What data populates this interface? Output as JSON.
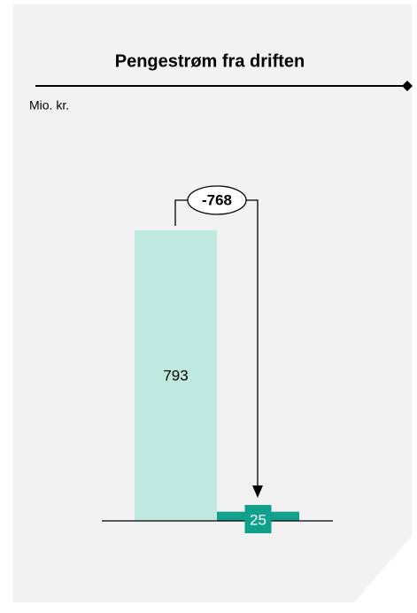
{
  "chart_data": {
    "type": "bar",
    "title": "Pengestrøm fra driften",
    "unit_label": "Mio. kr.",
    "categories": [
      null,
      null
    ],
    "values": [
      793,
      25
    ],
    "colors": [
      "#bfe8df",
      "#10a08c"
    ],
    "difference": -768
  }
}
